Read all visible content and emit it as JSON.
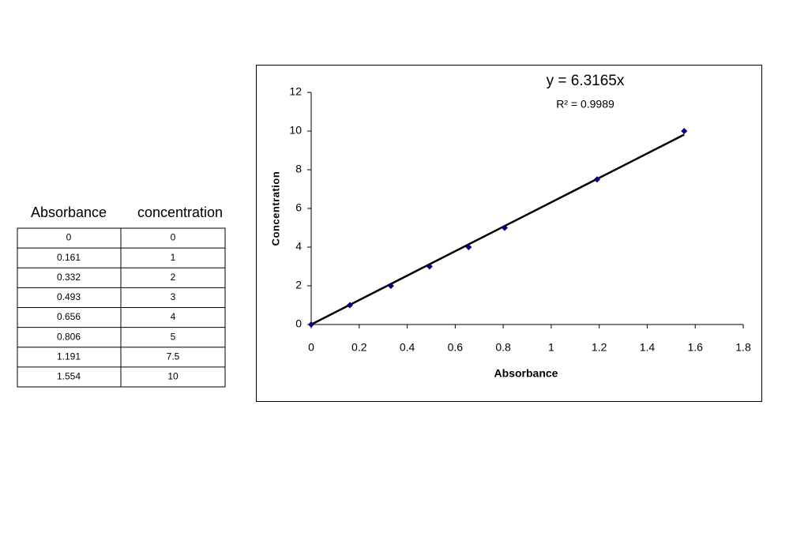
{
  "table": {
    "header": [
      "Absorbance",
      "concentration"
    ],
    "rows": [
      [
        0,
        0
      ],
      [
        0.161,
        1
      ],
      [
        0.332,
        2
      ],
      [
        0.493,
        3
      ],
      [
        0.656,
        4
      ],
      [
        0.806,
        5
      ],
      [
        1.191,
        7.5
      ],
      [
        1.554,
        10
      ]
    ]
  },
  "chart_data": {
    "type": "scatter",
    "x_label": "Absorbance",
    "y_label": "Concentration",
    "x": [
      0,
      0.161,
      0.332,
      0.493,
      0.656,
      0.806,
      1.191,
      1.554
    ],
    "values": [
      0,
      1,
      2,
      3,
      4,
      5,
      7.5,
      10
    ],
    "color": "#000080",
    "trendline": {
      "slope": 6.3165,
      "equation": "y = 6.3165x",
      "r2_label": "R² = 0.9989",
      "color": "#000000"
    },
    "xlim": [
      0,
      1.8
    ],
    "xticks": [
      0,
      0.2,
      0.4,
      0.6,
      0.8,
      1,
      1.2,
      1.4,
      1.6,
      1.8
    ],
    "ylim": [
      0,
      12
    ],
    "yticks": [
      0,
      2,
      4,
      6,
      8,
      10,
      12
    ],
    "grid": false
  }
}
